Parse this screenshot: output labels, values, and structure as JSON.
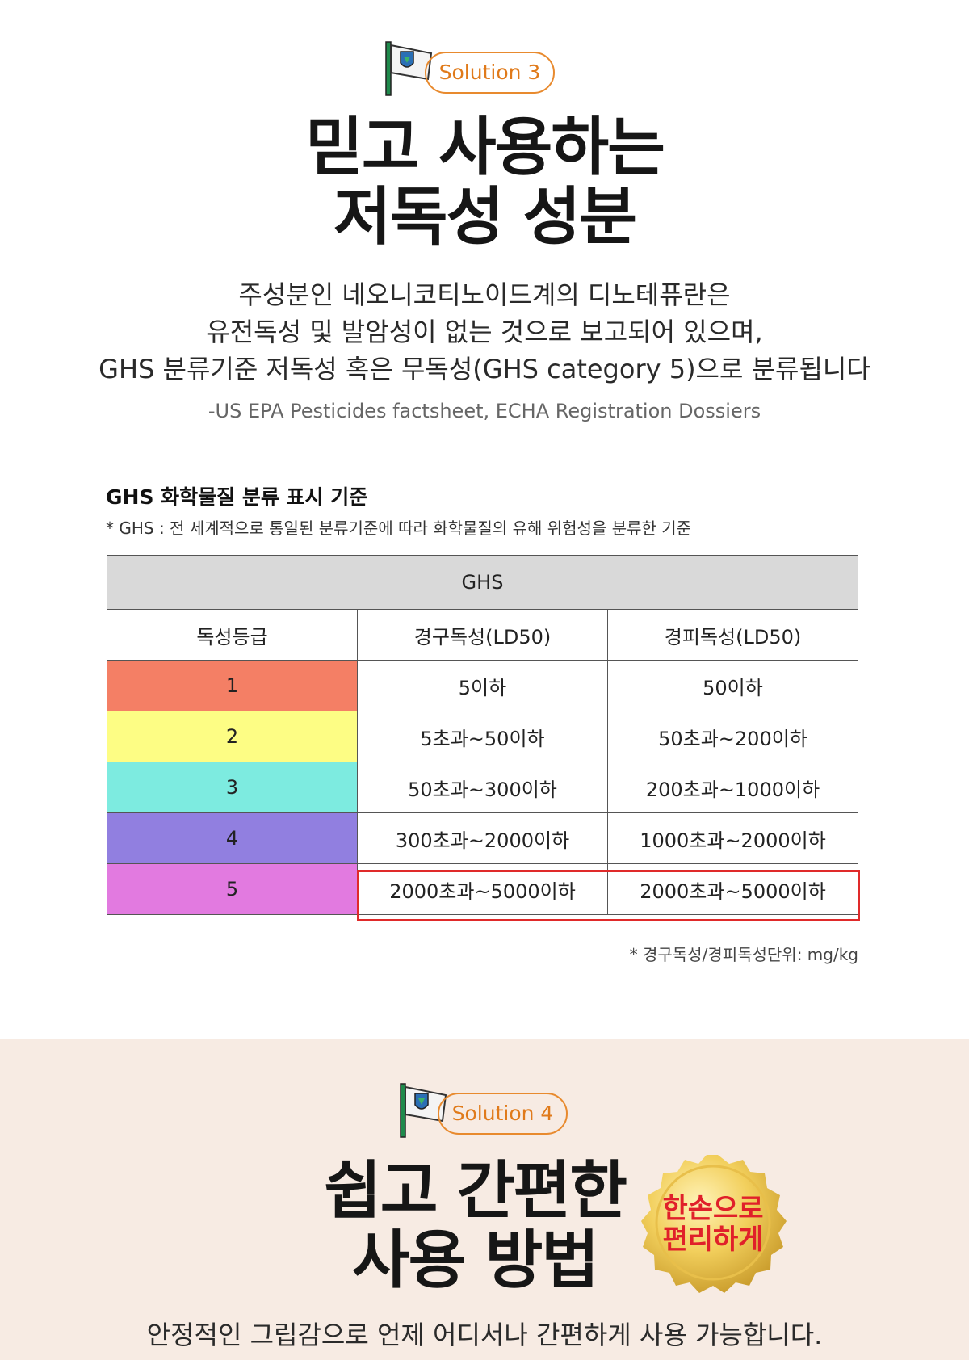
{
  "section1": {
    "badge": "Solution 3",
    "title": [
      "믿고 사용하는",
      "저독성 성분"
    ],
    "description": [
      "주성분인 네오니코티노이드계의 디노테퓨란은",
      "유전독성 및 발암성이 없는 것으로 보고되어 있으며,",
      "GHS 분류기준 저독성 혹은 무독성(GHS category 5)으로 분류됩니다"
    ],
    "source": "-US EPA Pesticides factsheet, ECHA Registration Dossiers"
  },
  "table_title": "GHS 화학물질 분류 표시 기준",
  "table_note": "* GHS : 전 세계적으로 통일된 분류기준에 따라 화학물질의 유해 위험성을 분류한 기준",
  "table": {
    "caption": "GHS",
    "columns": [
      "독성등급",
      "경구독성(LD50)",
      "경피독성(LD50)"
    ],
    "rows": [
      [
        "1",
        "5이하",
        "50이하"
      ],
      [
        "2",
        "5초과~50이하",
        "50초과~200이하"
      ],
      [
        "3",
        "50초과~300이하",
        "200초과~1000이하"
      ],
      [
        "4",
        "300초과~2000이하",
        "1000초과~2000이하"
      ],
      [
        "5",
        "2000초과~5000이하",
        "2000초과~5000이하"
      ]
    ],
    "grade_colors": [
      "#f47f65",
      "#fdfd84",
      "#7debe0",
      "#917fe0",
      "#e27ae0"
    ]
  },
  "unit_note": "* 경구독성/경피독성단위: mg/kg",
  "section2": {
    "badge": "Solution 4",
    "title": [
      "쉽고 간편한",
      "사용 방법"
    ],
    "seal": [
      "한손으로",
      "편리하게"
    ],
    "description": "안정적인 그립감으로 언제 어디서나 간편하게 사용 가능합니다."
  }
}
